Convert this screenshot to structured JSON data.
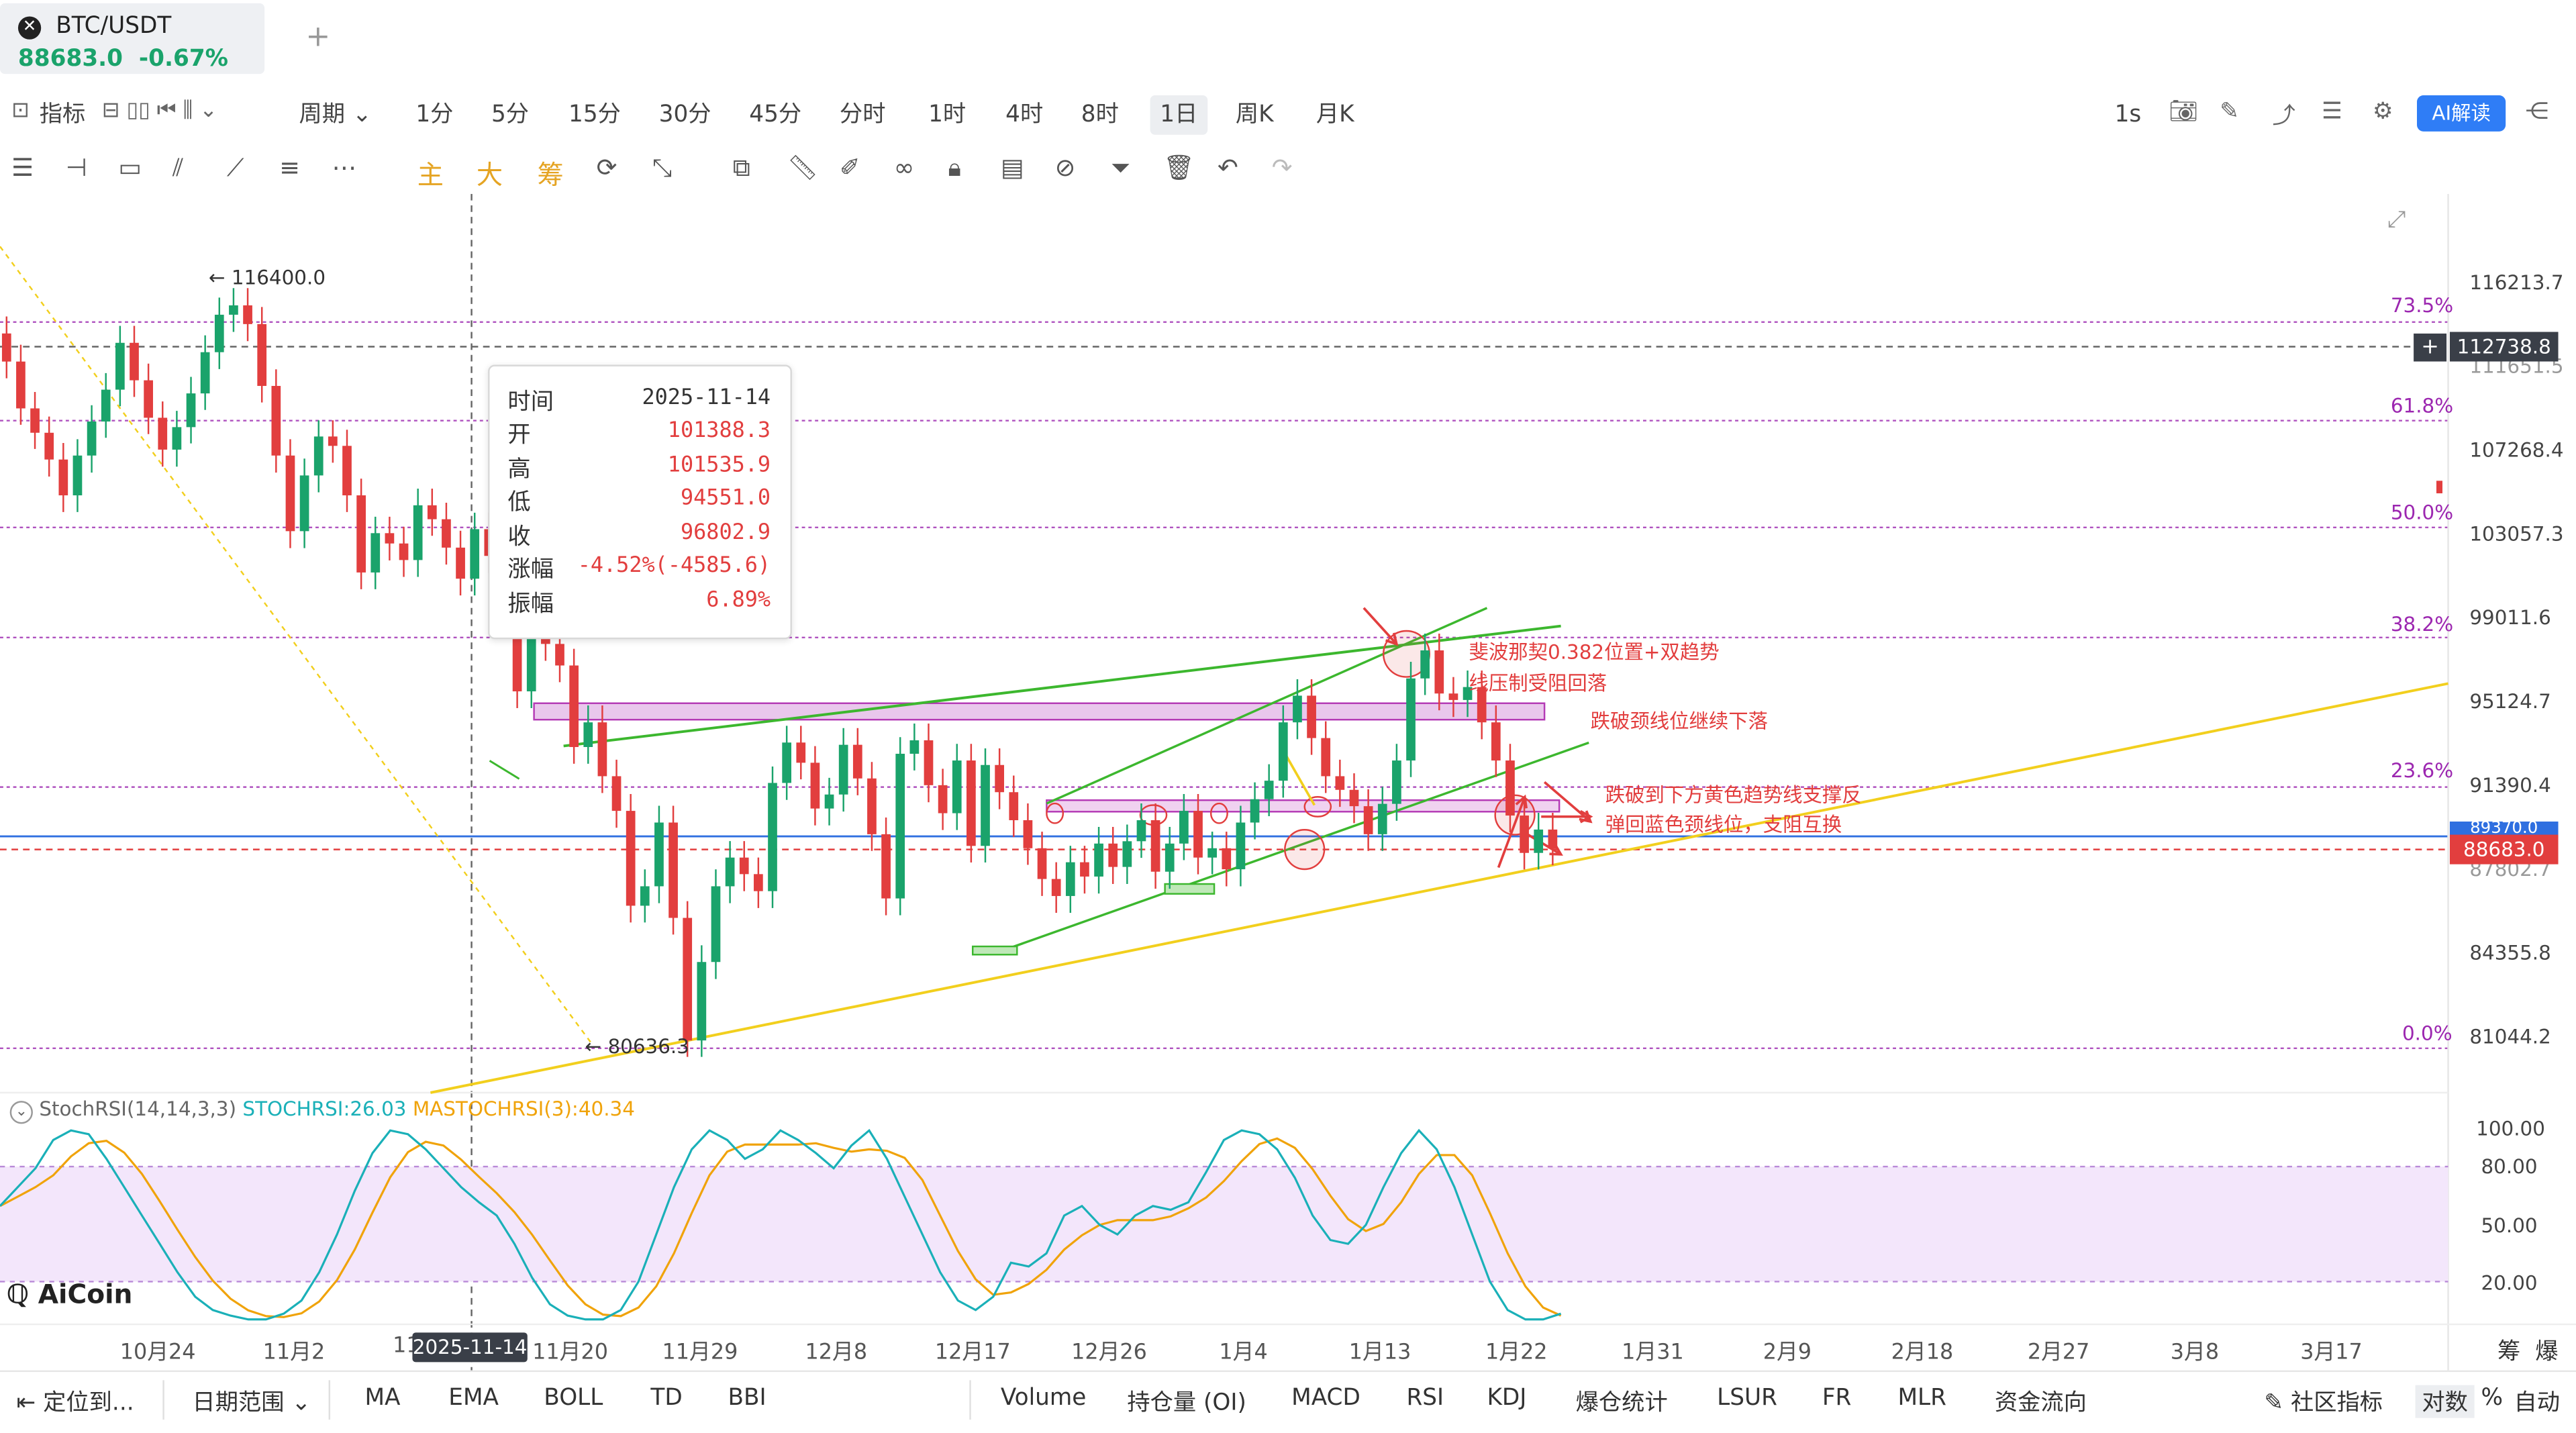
{
  "tab": {
    "symbol": "BTC/USDT",
    "price": "88683.0",
    "change": "-0.67%"
  },
  "toolbar1": {
    "indicator": "指标",
    "period": "周期",
    "intervals": [
      "1分",
      "5分",
      "15分",
      "30分",
      "45分",
      "分时",
      "1时",
      "4时",
      "8时",
      "1日",
      "周K",
      "月K"
    ],
    "active_interval": "1日",
    "refresh": "1s",
    "ai": "AI解读"
  },
  "toolbar2": {
    "main": "主",
    "big": "大",
    "chip": "筹"
  },
  "tooltip": {
    "rows": [
      {
        "k": "时间",
        "v": "2025-11-14"
      },
      {
        "k": "开",
        "v": "101388.3"
      },
      {
        "k": "高",
        "v": "101535.9"
      },
      {
        "k": "低",
        "v": "94551.0"
      },
      {
        "k": "收",
        "v": "96802.9"
      },
      {
        "k": "涨幅",
        "v": "-4.52%(-4585.6)"
      },
      {
        "k": "振幅",
        "v": "6.89%"
      }
    ]
  },
  "price_axis": [
    "116213.7",
    "111651.5",
    "107268.4",
    "103057.3",
    "99011.6",
    "95124.7",
    "91390.4",
    "87802.7",
    "84355.8",
    "81044.2"
  ],
  "price_boxes": {
    "crosshair": "112738.8",
    "last": "88683.0",
    "line": "89370.0"
  },
  "fib_levels": [
    {
      "label": "73.5%"
    },
    {
      "label": "61.8%"
    },
    {
      "label": "50.0%"
    },
    {
      "label": "38.2%"
    },
    {
      "label": "23.6%"
    },
    {
      "label": "0.0%"
    }
  ],
  "extremes": {
    "high": "116400.0",
    "low": "80636.3"
  },
  "annotations": {
    "a1": "斐波那契0.382位置+双趋势",
    "a2": "线压制受阻回落",
    "a3": "跌破颈线位继续下落",
    "a4": "跌破到下方黄色趋势线支撑反",
    "a5": "弹回蓝色颈线位，支阻互换"
  },
  "stoch": {
    "name": "StochRSI(14,14,3,3)",
    "k": "STOCHRSI:26.03",
    "d": "MASTOCHRSI(3):40.34",
    "axis": [
      "100.00",
      "80.00",
      "50.00",
      "20.00"
    ]
  },
  "watermark": "AiCoin",
  "x_axis": [
    "10月24",
    "11月2",
    "11",
    "11月20",
    "11月29",
    "12月8",
    "12月17",
    "12月26",
    "1月4",
    "1月13",
    "1月22",
    "1月31",
    "2月9",
    "2月18",
    "2月27",
    "3月8",
    "3月17"
  ],
  "crosshair_date": "2025-11-14",
  "corner": {
    "chip": "筹",
    "burst": "爆"
  },
  "bottom": {
    "locate": "定位到...",
    "range": "日期范围",
    "indicators": [
      "MA",
      "EMA",
      "BOLL",
      "TD",
      "BBI"
    ],
    "sub": [
      "Volume",
      "持仓量 (OI)",
      "MACD",
      "RSI",
      "KDJ",
      "爆仓统计",
      "LSUR",
      "FR",
      "MLR",
      "资金流向"
    ],
    "community": "社区指标",
    "log": "对数",
    "pct": "%",
    "auto": "自动"
  },
  "colors": {
    "up": "#1aa36b",
    "down": "#e23e3e",
    "fib": "#9c27b0",
    "yellow": "#f2cf1d",
    "green": "#3cb72e",
    "blue": "#2f6fe0"
  },
  "chart_data": {
    "type": "candlestick",
    "title": "BTC/USDT 1日",
    "ohlc_sample": [
      {
        "date": "2025-11-14",
        "open": 101388.3,
        "high": 101535.9,
        "low": 94551.0,
        "close": 96802.9
      }
    ],
    "ylim": [
      80000,
      118000
    ]
  }
}
